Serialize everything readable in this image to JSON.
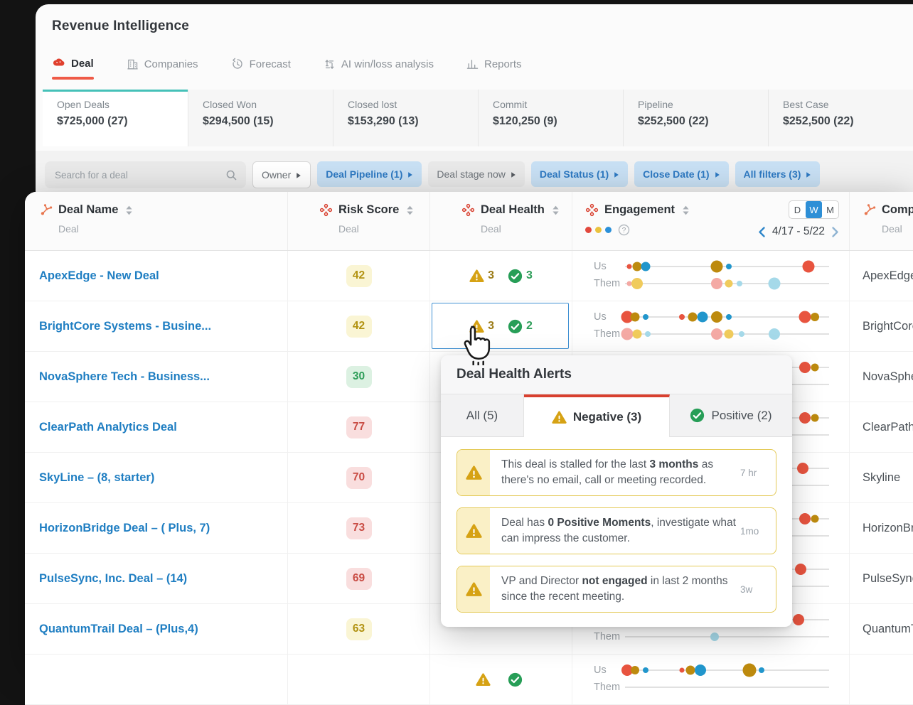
{
  "app": {
    "title": "Revenue Intelligence"
  },
  "nav": {
    "tabs": [
      {
        "label": "Deal",
        "icon": "gong-logo",
        "active": true
      },
      {
        "label": "Companies",
        "icon": "companies",
        "active": false
      },
      {
        "label": "Forecast",
        "icon": "forecast",
        "active": false
      },
      {
        "label": "AI win/loss analysis",
        "icon": "winloss",
        "active": false
      },
      {
        "label": "Reports",
        "icon": "reports",
        "active": false
      }
    ]
  },
  "summary_cards": [
    {
      "label": "Open Deals",
      "value": "$725,000 (27)",
      "active": true
    },
    {
      "label": "Closed Won",
      "value": "$294,500 (15)",
      "active": false
    },
    {
      "label": "Closed lost",
      "value": "$153,290 (13)",
      "active": false
    },
    {
      "label": "Commit",
      "value": "$120,250 (9)",
      "active": false
    },
    {
      "label": "Pipeline",
      "value": "$252,500 (22)",
      "active": false
    },
    {
      "label": "Best Case",
      "value": "$252,500 (22)",
      "active": false
    }
  ],
  "filter_bar": {
    "search_placeholder": "Search for a deal",
    "buttons": [
      {
        "label": "Owner",
        "style": "plain"
      },
      {
        "label": "Deal Pipeline (1)",
        "style": "active"
      },
      {
        "label": "Deal stage now",
        "style": "muted"
      },
      {
        "label": "Deal Status (1)",
        "style": "active"
      },
      {
        "label": "Close Date (1)",
        "style": "active"
      },
      {
        "label": "All filters (3)",
        "style": "active"
      }
    ]
  },
  "table": {
    "columns": [
      {
        "title": "Deal Name",
        "subtitle": "Deal",
        "icon": "hubspot"
      },
      {
        "title": "Risk Score",
        "subtitle": "Deal",
        "icon": "gong"
      },
      {
        "title": "Deal Health",
        "subtitle": "Deal",
        "icon": "gong"
      },
      {
        "title": "Engagement",
        "subtitle": "",
        "icon": "gong"
      },
      {
        "title": "Company",
        "subtitle": "Deal",
        "icon": "hubspot"
      }
    ],
    "engagement": {
      "legend_colors": [
        "#e2483d",
        "#eac23e",
        "#2b90d9"
      ],
      "periods": [
        "D",
        "W",
        "M"
      ],
      "active_period": "W",
      "date_range": "4/17 - 5/22",
      "row_labels": [
        "Us",
        "Them"
      ],
      "palette": {
        "r": "#e8543f",
        "o": "#bd8a0e",
        "b": "#2196cc",
        "p": "#f4a9a4",
        "y": "#f0cb5c",
        "l": "#a5d9e9"
      }
    },
    "rows": [
      {
        "deal_name": "ApexEdge - New Deal",
        "risk_score": "42",
        "risk_level": "yellow",
        "health": {
          "neg": "3",
          "pos": "3"
        },
        "selected": false,
        "company": "ApexEdge",
        "us_dots": [
          [
            2,
            7,
            "r"
          ],
          [
            6,
            13,
            "o"
          ],
          [
            10,
            13,
            "b"
          ],
          [
            45,
            17,
            "o"
          ],
          [
            51,
            8,
            "b"
          ],
          [
            90,
            17,
            "r"
          ]
        ],
        "them_dots": [
          [
            2,
            7,
            "p"
          ],
          [
            6,
            16,
            "y"
          ],
          [
            45,
            16,
            "p"
          ],
          [
            51,
            11,
            "y"
          ],
          [
            56,
            8,
            "l"
          ],
          [
            73,
            17,
            "l"
          ]
        ]
      },
      {
        "deal_name": "BrightCore Systems - Busine...",
        "risk_score": "42",
        "risk_level": "yellow",
        "health": {
          "neg": "3",
          "pos": "2"
        },
        "selected": true,
        "company": "BrightCore",
        "us_dots": [
          [
            1,
            17,
            "r"
          ],
          [
            5,
            13,
            "o"
          ],
          [
            10,
            8,
            "b"
          ],
          [
            28,
            8,
            "r"
          ],
          [
            33,
            13,
            "o"
          ],
          [
            38,
            15,
            "b"
          ],
          [
            45,
            16,
            "o"
          ],
          [
            51,
            8,
            "b"
          ],
          [
            88,
            17,
            "r"
          ],
          [
            93,
            12,
            "o"
          ]
        ],
        "them_dots": [
          [
            1,
            17,
            "p"
          ],
          [
            6,
            13,
            "y"
          ],
          [
            11,
            8,
            "l"
          ],
          [
            45,
            16,
            "p"
          ],
          [
            51,
            13,
            "y"
          ],
          [
            57,
            8,
            "l"
          ],
          [
            73,
            16,
            "l"
          ]
        ]
      },
      {
        "deal_name": "NovaSphere Tech - Business...",
        "risk_score": "30",
        "risk_level": "green",
        "health": null,
        "selected": false,
        "company": "NovaSphere",
        "us_dots": [
          [
            88,
            16,
            "r"
          ],
          [
            93,
            11,
            "o"
          ]
        ],
        "them_dots": []
      },
      {
        "deal_name": "ClearPath Analytics Deal",
        "risk_score": "77",
        "risk_level": "red",
        "health": null,
        "selected": false,
        "company": "ClearPath",
        "us_dots": [
          [
            88,
            16,
            "r"
          ],
          [
            93,
            11,
            "o"
          ]
        ],
        "them_dots": []
      },
      {
        "deal_name": "SkyLine – (8, starter)",
        "risk_score": "70",
        "risk_level": "red",
        "health": null,
        "selected": false,
        "company": "Skyline",
        "us_dots": [
          [
            87,
            16,
            "r"
          ]
        ],
        "them_dots": []
      },
      {
        "deal_name": "HorizonBridge Deal – ( Plus, 7)",
        "risk_score": "73",
        "risk_level": "red",
        "health": null,
        "selected": false,
        "company": "HorizonBridge",
        "us_dots": [
          [
            88,
            16,
            "r"
          ],
          [
            93,
            11,
            "o"
          ]
        ],
        "them_dots": []
      },
      {
        "deal_name": "PulseSync, Inc. Deal – (14)",
        "risk_score": "69",
        "risk_level": "red",
        "health": null,
        "selected": false,
        "company": "PulseSync",
        "us_dots": [
          [
            86,
            16,
            "r"
          ]
        ],
        "them_dots": []
      },
      {
        "deal_name": "QuantumTrail Deal – (Plus,4)",
        "risk_score": "63",
        "risk_level": "yellow",
        "health": null,
        "selected": false,
        "company": "QuantumTrail",
        "us_dots": [
          [
            85,
            16,
            "r"
          ]
        ],
        "them_dots": [
          [
            44,
            12,
            "l"
          ]
        ]
      },
      {
        "deal_name": "",
        "risk_score": "",
        "risk_level": null,
        "health": {
          "neg": "",
          "pos": ""
        },
        "selected": false,
        "company": "",
        "us_dots": [
          [
            1,
            16,
            "r"
          ],
          [
            5,
            12,
            "o"
          ],
          [
            10,
            8,
            "b"
          ],
          [
            28,
            7,
            "r"
          ],
          [
            32,
            13,
            "o"
          ],
          [
            37,
            16,
            "b"
          ],
          [
            61,
            19,
            "o"
          ],
          [
            67,
            8,
            "b"
          ]
        ],
        "them_dots": []
      }
    ]
  },
  "popup": {
    "title": "Deal Health Alerts",
    "tabs": [
      {
        "label": "All (5)",
        "icon": null,
        "active": false
      },
      {
        "label": "Negative (3)",
        "icon": "warning",
        "active": true
      },
      {
        "label": "Positive (2)",
        "icon": "check",
        "active": false
      }
    ],
    "alerts": [
      {
        "age": "7 hr",
        "segments": [
          {
            "t": "This deal is stalled for the last "
          },
          {
            "t": "3 months",
            "b": true
          },
          {
            "t": " as there's no email, call or meeting recorded."
          }
        ]
      },
      {
        "age": "1mo",
        "segments": [
          {
            "t": "Deal has "
          },
          {
            "t": "0 Positive Moments",
            "b": true
          },
          {
            "t": ", investigate what can impress the customer."
          }
        ]
      },
      {
        "age": "3w",
        "segments": [
          {
            "t": "VP and Director "
          },
          {
            "t": "not engaged",
            "b": true
          },
          {
            "t": " in last 2 months since the recent meeting."
          }
        ]
      }
    ]
  },
  "colors": {
    "accent_red": "#ef5a47",
    "accent_teal": "#45c1b8",
    "link_blue": "#1f7ec2",
    "chip_blue_bg": "#c8e0f4",
    "selection_blue": "#3f90d2",
    "warning_yellow": "#d6a214",
    "positive_green": "#279e57"
  }
}
